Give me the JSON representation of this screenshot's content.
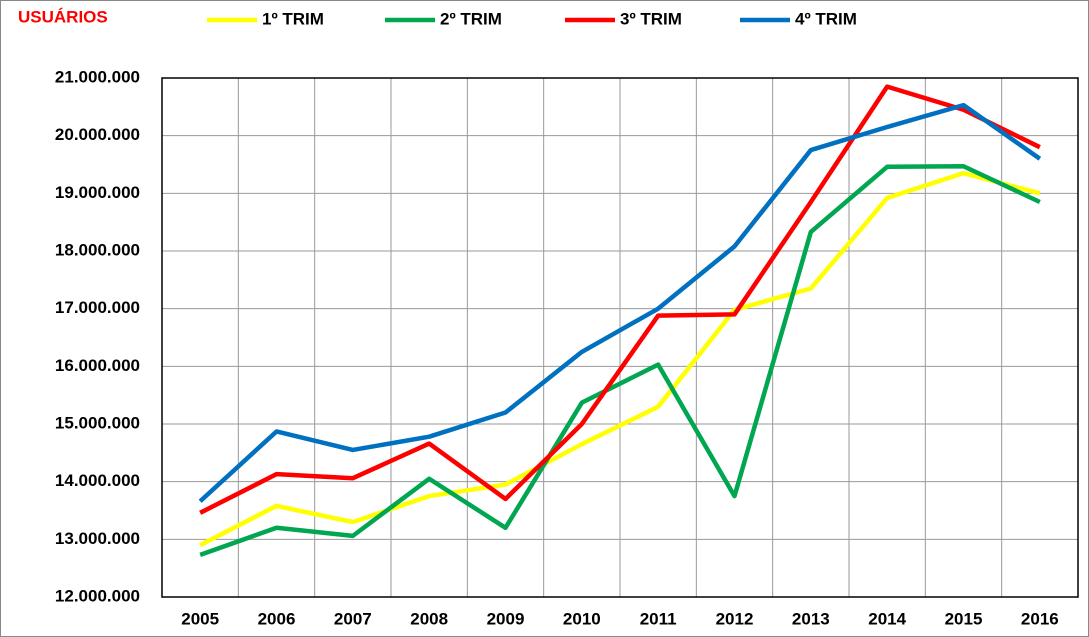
{
  "chart_data": {
    "type": "line",
    "title": "USUÁRIOS",
    "categories": [
      "2005",
      "2006",
      "2007",
      "2008",
      "2009",
      "2010",
      "2011",
      "2012",
      "2013",
      "2014",
      "2015",
      "2016"
    ],
    "series": [
      {
        "name": "1º TRIM",
        "color": "#ffff00",
        "values": [
          12900000,
          13580000,
          13300000,
          13750000,
          13950000,
          14650000,
          15300000,
          16980000,
          17350000,
          18920000,
          19350000,
          19000000
        ]
      },
      {
        "name": "2º TRIM",
        "color": "#00a650",
        "values": [
          12730000,
          13200000,
          13060000,
          14050000,
          13200000,
          15370000,
          16030000,
          13750000,
          18330000,
          19460000,
          19470000,
          18850000
        ]
      },
      {
        "name": "3º TRIM",
        "color": "#ff0000",
        "values": [
          13460000,
          14130000,
          14060000,
          14660000,
          13700000,
          15000000,
          16880000,
          16900000,
          18850000,
          20850000,
          20450000,
          19800000
        ]
      },
      {
        "name": "4º TRIM",
        "color": "#0070c0",
        "values": [
          13660000,
          14870000,
          14550000,
          14780000,
          15200000,
          16250000,
          17000000,
          18080000,
          19750000,
          20150000,
          20530000,
          19600000
        ]
      }
    ],
    "ylim": [
      12000000,
      21000000
    ],
    "yticks": [
      {
        "value": 12000000,
        "label": "12.000.000"
      },
      {
        "value": 13000000,
        "label": "13.000.000"
      },
      {
        "value": 14000000,
        "label": "14.000.000"
      },
      {
        "value": 15000000,
        "label": "15.000.000"
      },
      {
        "value": 16000000,
        "label": "16.000.000"
      },
      {
        "value": 17000000,
        "label": "17.000.000"
      },
      {
        "value": 18000000,
        "label": "18.000.000"
      },
      {
        "value": 19000000,
        "label": "19.000.000"
      },
      {
        "value": 20000000,
        "label": "20.000.000"
      },
      {
        "value": 21000000,
        "label": "21.000.000"
      }
    ],
    "grid": true,
    "legend": "top"
  }
}
